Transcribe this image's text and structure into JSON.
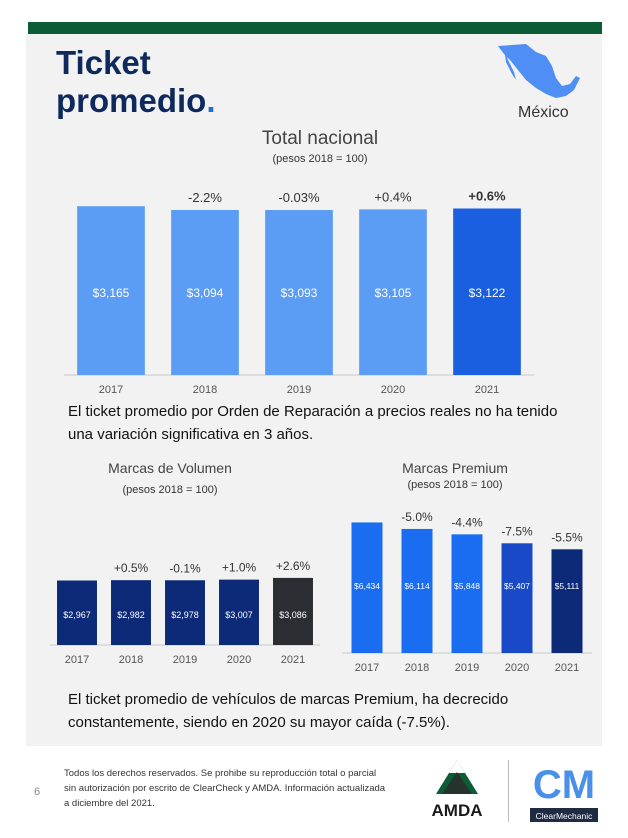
{
  "page": {
    "title_line1": "Ticket",
    "title_line2": "promedio",
    "title_dot": ".",
    "country": "México",
    "colors": {
      "green_bar": "#0c5d36",
      "navy": "#0e2a5c",
      "accent": "#1d6fd8"
    }
  },
  "chart_data": [
    {
      "id": "total",
      "type": "bar",
      "title": "Total nacional",
      "subtitle": "(pesos 2018 = 100)",
      "categories": [
        "2017",
        "2018",
        "2019",
        "2020",
        "2021"
      ],
      "values": [
        3165,
        3094,
        3093,
        3105,
        3122
      ],
      "value_labels": [
        "$3,165",
        "$3,094",
        "$3,093",
        "$3,105",
        "$3,122"
      ],
      "changes": [
        "",
        "-2.2%",
        "-0.03%",
        "+0.4%",
        "+0.6%"
      ],
      "colors": [
        "#5b9cf5",
        "#5b9cf5",
        "#5b9cf5",
        "#5b9cf5",
        "#1a5fe0"
      ],
      "ylim": [
        0,
        3300
      ]
    },
    {
      "id": "volumen",
      "type": "bar",
      "title": "Marcas de Volumen",
      "subtitle": "(pesos 2018 = 100)",
      "categories": [
        "2017",
        "2018",
        "2019",
        "2020",
        "2021"
      ],
      "values": [
        2967,
        2982,
        2978,
        3007,
        3086
      ],
      "value_labels": [
        "$2,967",
        "$2,982",
        "$2,978",
        "$3,007",
        "$3,086"
      ],
      "changes": [
        "",
        "+0.5%",
        "-0.1%",
        "+1.0%",
        "+2.6%"
      ],
      "colors": [
        "#0d2a78",
        "#0d2a78",
        "#0d2a78",
        "#0d2a78",
        "#2b2d33"
      ],
      "ylim": [
        0,
        6900
      ]
    },
    {
      "id": "premium",
      "type": "bar",
      "title": "Marcas Premium",
      "subtitle": "(pesos 2018 = 100)",
      "categories": [
        "2017",
        "2018",
        "2019",
        "2020",
        "2021"
      ],
      "values": [
        6434,
        6114,
        5848,
        5407,
        5111
      ],
      "value_labels": [
        "$6,434",
        "$6,114",
        "$5,848",
        "$5,407",
        "$5,111"
      ],
      "changes": [
        "",
        "-5.0%",
        "-4.4%",
        "-7.5%",
        "-5.5%"
      ],
      "colors": [
        "#1a6cf0",
        "#1a6cf0",
        "#1a6cf0",
        "#1a49c8",
        "#0d2a78"
      ],
      "ylim": [
        0,
        6900
      ]
    }
  ],
  "text": {
    "para1_line1": "El ticket promedio por Orden de Reparación a precios reales no ha tenido",
    "para1_line2": "una variación significativa en 3 años.",
    "para2_line1": "El ticket promedio de vehículos de marcas Premium, ha decrecido",
    "para2_line2": "constantemente, siendo en 2020 su mayor caída (-7.5%)."
  },
  "footer": {
    "line1": "Todos los derechos reservados. Se prohibe su reproducción total o parcial",
    "line2": "sin autorización por escrito de ClearCheck y AMDA. Información actualizada",
    "line3": "a diciembre del 2021.",
    "page_number": "6",
    "amda_logo": "AMDA",
    "cm_logo_letters": "CM",
    "cm_logo_text": "ClearMechanic"
  }
}
